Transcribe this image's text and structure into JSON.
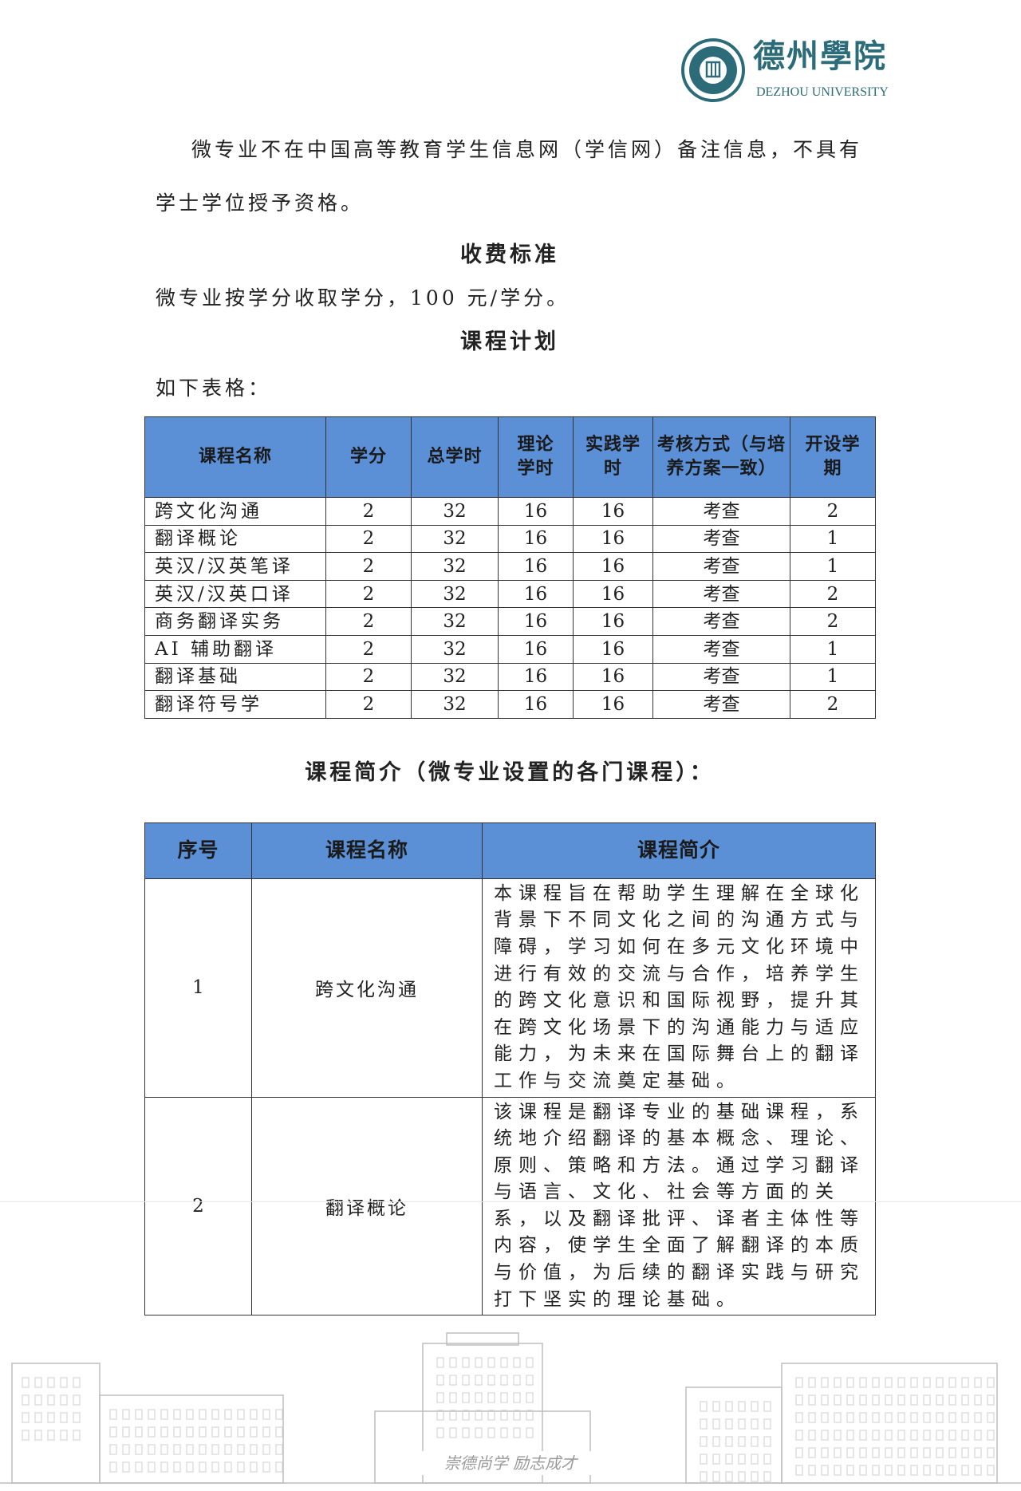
{
  "logo": {
    "name_cn": "德州學院",
    "name_en": "DEZHOU UNIVERSITY",
    "color": "#2c6b78"
  },
  "intro": "微专业不在中国高等教育学生信息网（学信网）备注信息，不具有学士学位授予资格。",
  "fee": {
    "heading": "收费标准",
    "text": "微专业按学分收取学分，100 元/学分。"
  },
  "plan": {
    "heading": "课程计划",
    "lead": "如下表格：",
    "header_color": "#5b8fd6",
    "columns": [
      "课程名称",
      "学分",
      "总学时",
      "理论学时",
      "实践学时",
      "考核方式（与培养方案一致）",
      "开设学期"
    ],
    "rows": [
      [
        "跨文化沟通",
        "2",
        "32",
        "16",
        "16",
        "考查",
        "2"
      ],
      [
        "翻译概论",
        "2",
        "32",
        "16",
        "16",
        "考查",
        "1"
      ],
      [
        "英汉/汉英笔译",
        "2",
        "32",
        "16",
        "16",
        "考查",
        "1"
      ],
      [
        "英汉/汉英口译",
        "2",
        "32",
        "16",
        "16",
        "考查",
        "2"
      ],
      [
        "商务翻译实务",
        "2",
        "32",
        "16",
        "16",
        "考查",
        "2"
      ],
      [
        "AI 辅助翻译",
        "2",
        "32",
        "16",
        "16",
        "考查",
        "1"
      ],
      [
        "翻译基础",
        "2",
        "32",
        "16",
        "16",
        "考查",
        "1"
      ],
      [
        "翻译符号学",
        "2",
        "32",
        "16",
        "16",
        "考查",
        "2"
      ]
    ]
  },
  "intro_table": {
    "heading": "课程简介（微专业设置的各门课程）：",
    "columns": [
      "序号",
      "课程名称",
      "课程简介"
    ],
    "rows": [
      [
        "1",
        "跨文化沟通",
        "本课程旨在帮助学生理解在全球化背景下不同文化之间的沟通方式与障碍，学习如何在多元文化环境中进行有效的交流与合作，培养学生的跨文化意识和国际视野，提升其在跨文化场景下的沟通能力与适应能力，为未来在国际舞台上的翻译工作与交流奠定基础。"
      ],
      [
        "2",
        "翻译概论",
        "该课程是翻译专业的基础课程，系统地介绍翻译的基本概念、理论、原则、策略和方法。通过学习翻译与语言、文化、社会等方面的关系，以及翻译批评、译者主体性等内容，使学生全面了解翻译的本质与价值，为后续的翻译实践与研究打下坚实的理论基础。"
      ]
    ]
  },
  "footer_calligraphy": "崇德尚学 励志成才"
}
